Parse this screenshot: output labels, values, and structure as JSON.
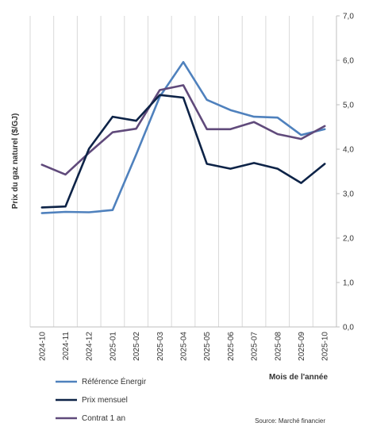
{
  "chart_data": {
    "type": "line",
    "ylabel": "Prix du gaz naturel ($/GJ)",
    "xlabel": "Mois de l'année",
    "source": "Source: Marché financier",
    "ylim": [
      0,
      7
    ],
    "yticks": [
      "0,0",
      "1,0",
      "2,0",
      "3,0",
      "4,0",
      "5,0",
      "6,0",
      "7,0"
    ],
    "y_axis_position": "right",
    "grid": "vertical",
    "legend_position": "bottom-left",
    "categories": [
      "2024-10",
      "2024-11",
      "2024-12",
      "2025-01",
      "2025-02",
      "2025-03",
      "2025-04",
      "2025-05",
      "2025-06",
      "2025-07",
      "2025-08",
      "2025-09",
      "2025-10"
    ],
    "series": [
      {
        "name": "Référence Énergir",
        "color": "#4f81bd",
        "values": [
          2.56,
          2.59,
          2.58,
          2.63,
          3.88,
          5.18,
          5.96,
          5.11,
          4.88,
          4.73,
          4.71,
          4.32,
          4.45
        ]
      },
      {
        "name": "Prix mensuel",
        "color": "#0d2347",
        "values": [
          2.69,
          2.71,
          4.01,
          4.73,
          4.64,
          5.22,
          5.16,
          3.67,
          3.56,
          3.69,
          3.56,
          3.24,
          3.67
        ]
      },
      {
        "name": "Contrat 1 an",
        "color": "#604a7b",
        "values": [
          3.65,
          3.43,
          3.92,
          4.38,
          4.46,
          5.33,
          5.44,
          4.45,
          4.45,
          4.61,
          4.34,
          4.23,
          4.52
        ]
      }
    ]
  }
}
